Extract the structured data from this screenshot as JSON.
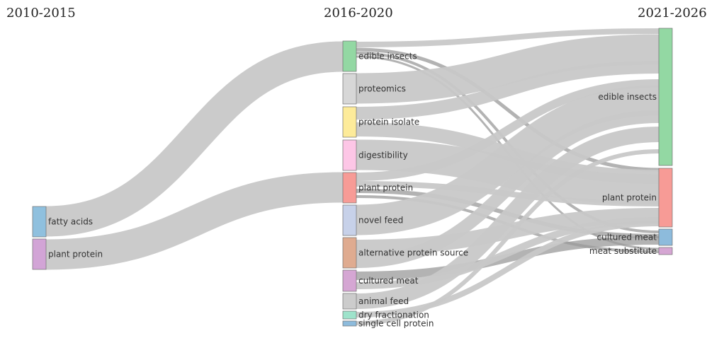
{
  "columns": [
    "2010-2015",
    "2016-2020",
    "2021-2026"
  ],
  "colors": {
    "link": "#c8c8c8",
    "link_dark": "#9a9a9a",
    "fatty_acids": "#8fc0de",
    "plant_protein_2010": "#d2a4d6",
    "edible_insects": "#93d8a3",
    "proteomics": "#d7d7d7",
    "protein_isolate": "#fdeb9a",
    "digestibility": "#fdc6e6",
    "plant_protein": "#f79b96",
    "novel_feed": "#c7d1e9",
    "alternative_protein_source": "#dfab90",
    "cultured_meat": "#d5a6d3",
    "animal_feed": "#cccccc",
    "dry_fractionation": "#9ee3cb",
    "single_cell_protein": "#8dbbdc",
    "edible_insects_2021": "#93d8a3",
    "plant_protein_2021": "#f79b96",
    "cultured_meat_2021": "#8dbbdc",
    "meat_substitute": "#d5a6d3"
  },
  "nodes": {
    "col0": [
      {
        "id": "fatty_acids_2010",
        "label": "fatty acids",
        "color_key": "fatty_acids"
      },
      {
        "id": "plant_protein_2010",
        "label": "plant protein",
        "color_key": "plant_protein_2010"
      }
    ],
    "col1": [
      {
        "id": "edible_insects",
        "label": "edible insects",
        "color_key": "edible_insects"
      },
      {
        "id": "proteomics",
        "label": "proteomics",
        "color_key": "proteomics"
      },
      {
        "id": "protein_isolate",
        "label": "protein isolate",
        "color_key": "protein_isolate"
      },
      {
        "id": "digestibility",
        "label": "digestibility",
        "color_key": "digestibility"
      },
      {
        "id": "plant_protein",
        "label": "plant protein",
        "color_key": "plant_protein"
      },
      {
        "id": "novel_feed",
        "label": "novel feed",
        "color_key": "novel_feed"
      },
      {
        "id": "alternative_protein_source",
        "label": "alternative protein source",
        "color_key": "alternative_protein_source"
      },
      {
        "id": "cultured_meat",
        "label": "cultured meat",
        "color_key": "cultured_meat"
      },
      {
        "id": "animal_feed",
        "label": "animal feed",
        "color_key": "animal_feed"
      },
      {
        "id": "dry_fractionation",
        "label": "dry fractionation",
        "color_key": "dry_fractionation"
      },
      {
        "id": "single_cell_protein",
        "label": "single cell protein",
        "color_key": "single_cell_protein"
      }
    ],
    "col2": [
      {
        "id": "edible_insects_2021",
        "label": "edible insects",
        "color_key": "edible_insects_2021"
      },
      {
        "id": "plant_protein_2021",
        "label": "plant protein",
        "color_key": "plant_protein_2021"
      },
      {
        "id": "cultured_meat_2021",
        "label": "cultured meat",
        "color_key": "cultured_meat_2021"
      },
      {
        "id": "meat_substitute_2021",
        "label": "meat substitute",
        "color_key": "meat_substitute"
      }
    ]
  }
}
